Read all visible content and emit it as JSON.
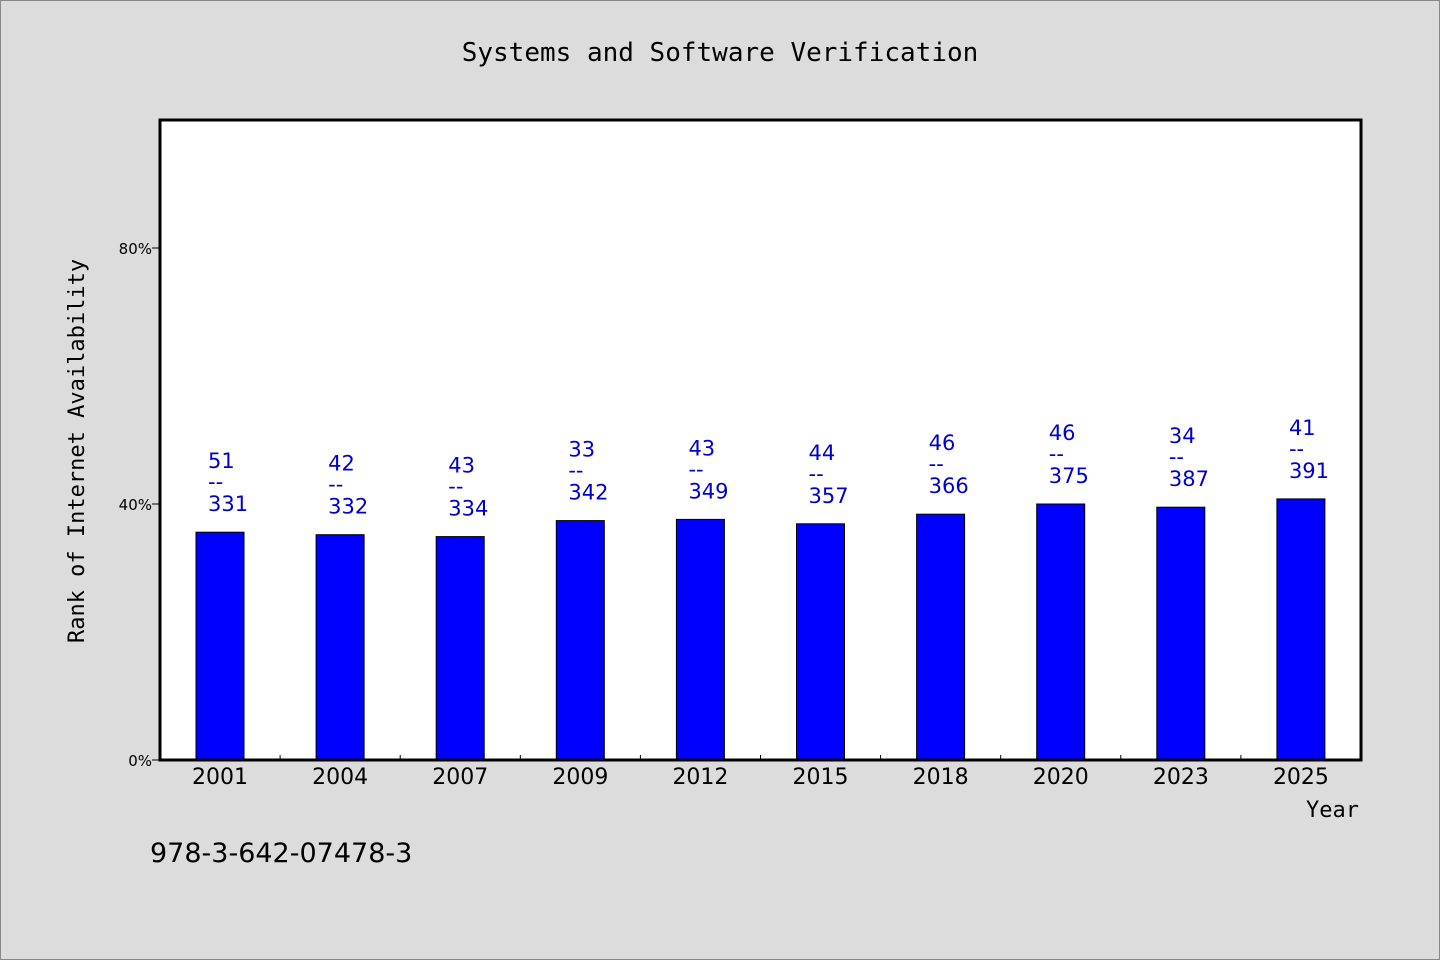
{
  "chart_data": {
    "type": "bar",
    "title": "Systems and Software Verification",
    "xlabel": "Year",
    "ylabel": "Rank of Internet Availability",
    "footnote": "978-3-642-07478-3",
    "categories": [
      "2001",
      "2004",
      "2007",
      "2009",
      "2012",
      "2015",
      "2018",
      "2020",
      "2023",
      "2025"
    ],
    "values": [
      35.6,
      35.2,
      34.9,
      37.4,
      37.6,
      36.9,
      38.4,
      40.0,
      39.5,
      40.8
    ],
    "label_top": [
      "51",
      "42",
      "43",
      "33",
      "43",
      "44",
      "46",
      "46",
      "34",
      "41"
    ],
    "label_mid": [
      "--",
      "--",
      "--",
      "--",
      "--",
      "--",
      "--",
      "--",
      "--",
      "--"
    ],
    "label_bottom": [
      "331",
      "332",
      "334",
      "342",
      "349",
      "357",
      "366",
      "375",
      "387",
      "391"
    ],
    "ylim": [
      0,
      100
    ],
    "yticks": [
      0,
      40,
      80
    ],
    "ytick_labels": [
      "0%",
      "40%",
      "80%"
    ],
    "grid": false,
    "legend": "none",
    "colors": {
      "background": "#dcdcdc",
      "plot_background": "#ffffff",
      "bar": "#0000ff",
      "bar_edge": "#000000",
      "data_label": "#0000cc",
      "text": "#000000"
    }
  }
}
